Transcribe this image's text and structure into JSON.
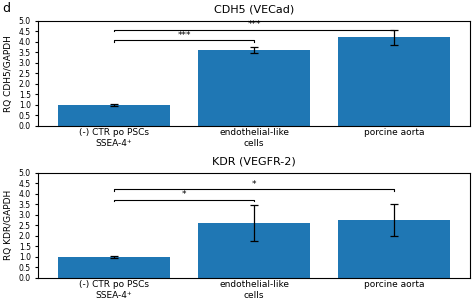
{
  "panel_label": "d",
  "chart_data": [
    {
      "type": "bar",
      "title": "CDH5 (VECad)",
      "ylabel": "RQ CDH5/GAPDH",
      "categories": [
        "(-) CTR po PSCs\nSSEA-4⁺",
        "endothelial-like\ncells",
        "porcine aorta"
      ],
      "values": [
        1.0,
        3.6,
        4.2
      ],
      "errors": [
        0.05,
        0.15,
        0.35
      ],
      "ylim": [
        0,
        5.0
      ],
      "yticks": [
        {
          "value": 0.0,
          "label": "0.0"
        },
        {
          "value": 0.5,
          "label": "0.5"
        },
        {
          "value": 1.0,
          "label": "1.0"
        },
        {
          "value": 1.5,
          "label": "1.5"
        },
        {
          "value": 2.0,
          "label": "2.0"
        },
        {
          "value": 2.5,
          "label": "2.5"
        },
        {
          "value": 3.0,
          "label": "3.0"
        },
        {
          "value": 3.5,
          "label": "3.5"
        },
        {
          "value": 4.0,
          "label": "4.0"
        },
        {
          "value": 4.5,
          "label": "4.5"
        },
        {
          "value": 5.0,
          "label": "5.0"
        }
      ],
      "annotations": [
        {
          "text": "***",
          "from": "(-) CTR po PSCs\nSSEA-4⁺",
          "to": "endothelial-like\ncells",
          "y": 4.05
        },
        {
          "text": "***",
          "from": "(-) CTR po PSCs\nSSEA-4⁺",
          "to": "porcine aorta",
          "y": 4.55
        }
      ]
    },
    {
      "type": "bar",
      "title": "KDR (VEGFR-2)",
      "ylabel": "RQ KDR/GAPDH",
      "categories": [
        "(-) CTR po PSCs\nSSEA-4⁺",
        "endothelial-like\ncells",
        "porcine aorta"
      ],
      "values": [
        1.0,
        2.6,
        2.75
      ],
      "errors": [
        0.05,
        0.85,
        0.75
      ],
      "ylim": [
        0,
        5.0
      ],
      "yticks": [
        {
          "value": 0.0,
          "label": "0.0"
        },
        {
          "value": 0.5,
          "label": "0.5"
        },
        {
          "value": 1.0,
          "label": "1.0"
        },
        {
          "value": 1.5,
          "label": "1.5"
        },
        {
          "value": 2.0,
          "label": "2.0"
        },
        {
          "value": 2.5,
          "label": "2.5"
        },
        {
          "value": 3.0,
          "label": "3.0"
        },
        {
          "value": 3.5,
          "label": "3.5"
        },
        {
          "value": 4.0,
          "label": "4.0"
        },
        {
          "value": 4.5,
          "label": "4.5"
        },
        {
          "value": 5.0,
          "label": "5.0"
        }
      ],
      "annotations": [
        {
          "text": "*",
          "from": "(-) CTR po PSCs\nSSEA-4⁺",
          "to": "endothelial-like\ncells",
          "y": 3.7
        },
        {
          "text": "*",
          "from": "(-) CTR po PSCs\nSSEA-4⁺",
          "to": "porcine aorta",
          "y": 4.2
        }
      ]
    }
  ]
}
